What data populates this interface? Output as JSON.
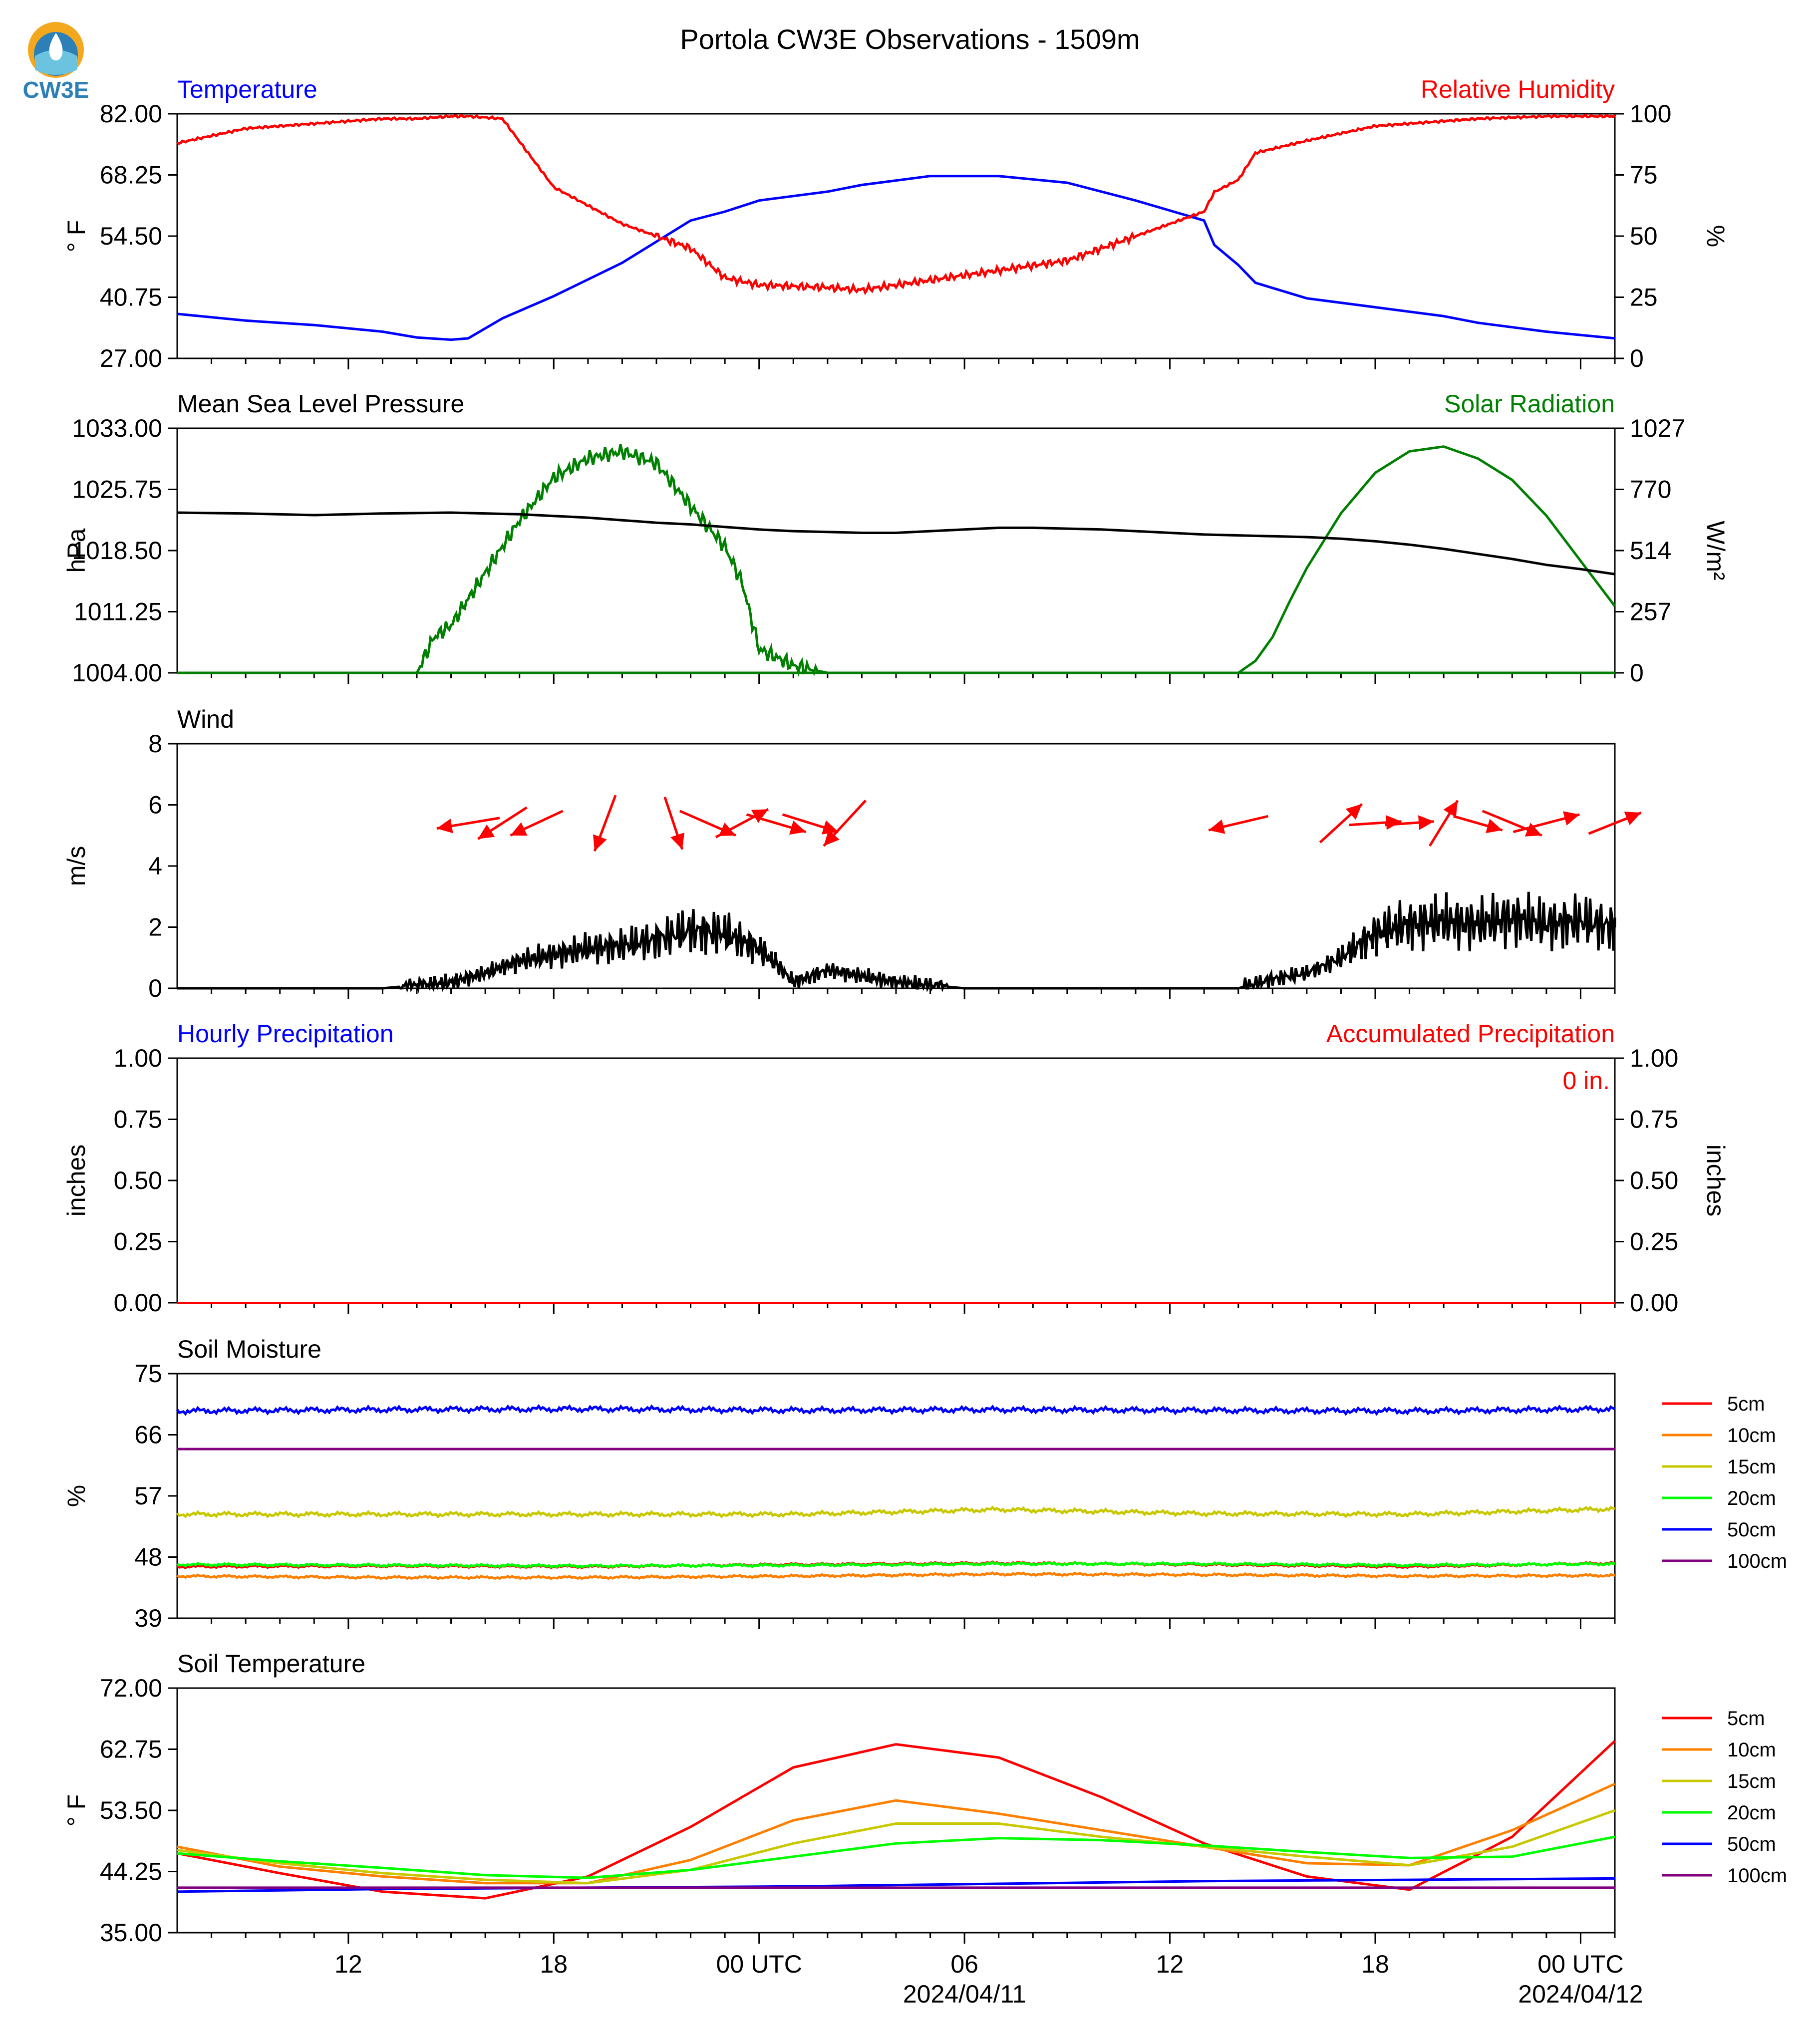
{
  "title": "Portola CW3E Observations - 1509m",
  "logo": {
    "text": "CW3E",
    "colors": [
      "#f4a81d",
      "#2d7fb8",
      "#6cc3e0"
    ]
  },
  "colors": {
    "temp": "#0000ff",
    "rh": "#ff0000",
    "pressure": "#000000",
    "solar": "#008000",
    "wind": "#000000",
    "arrows": "#ff0000",
    "precip_hourly": "#0000ff",
    "precip_accum": "#ff0000"
  },
  "x_axis": {
    "tick_labels": [
      "12",
      "18",
      "00 UTC",
      "06",
      "12",
      "18",
      "00 UTC"
    ],
    "date_labels": [
      "2024/04/11",
      "2024/04/12"
    ]
  },
  "chart_data": [
    {
      "type": "line",
      "title_left": "Temperature",
      "title_right": "Relative Humidity",
      "ylabel_left": "° F",
      "ylabel_right": "%",
      "ylim_left": [
        27,
        82
      ],
      "ylim_right": [
        0,
        100
      ],
      "yticks_left": [
        "27.00",
        "40.75",
        "54.50",
        "68.25",
        "82.00"
      ],
      "yticks_right": [
        "0",
        "25",
        "50",
        "75",
        "100"
      ],
      "x_hours": [
        0,
        2,
        4,
        6,
        7,
        8,
        8.5,
        9.5,
        11,
        13,
        15,
        16,
        17,
        19,
        20,
        22,
        24,
        26,
        28,
        30,
        30.3,
        31,
        31.5,
        33,
        35,
        37,
        38,
        40,
        42
      ],
      "series": [
        {
          "name": "Temperature",
          "axis": "left",
          "values": [
            37,
            35.5,
            34.5,
            33,
            31.7,
            31.2,
            31.5,
            36,
            41,
            48.5,
            58,
            60,
            62.5,
            64.5,
            66,
            68,
            68,
            66.5,
            62.5,
            58,
            52.5,
            48,
            44,
            40.5,
            38.5,
            36.5,
            35,
            33,
            31.5
          ]
        },
        {
          "name": "Relative Humidity",
          "axis": "right",
          "values": [
            88,
            94,
            96,
            98,
            98,
            99,
            99,
            98,
            70,
            55,
            45,
            33,
            30,
            29,
            28,
            32,
            36,
            40,
            50,
            60,
            68,
            73,
            84,
            89,
            95,
            97,
            98,
            99,
            99
          ]
        }
      ]
    },
    {
      "type": "line",
      "title_left": "Mean Sea Level Pressure",
      "title_right": "Solar Radiation",
      "ylabel_left": "hPa",
      "ylabel_right": "W/m²",
      "ylim_left": [
        1004,
        1033
      ],
      "ylim_right": [
        0,
        1027
      ],
      "yticks_left": [
        "1004.00",
        "1011.25",
        "1018.50",
        "1025.75",
        "1033.00"
      ],
      "yticks_right": [
        "0",
        "257",
        "514",
        "770",
        "1027"
      ],
      "x_hours": [
        0,
        2,
        4,
        6,
        8,
        10,
        11,
        12,
        13,
        14,
        15,
        16,
        17,
        18,
        19,
        20,
        21,
        22,
        23,
        24,
        25,
        26,
        27,
        28,
        29,
        30,
        31,
        32,
        33,
        34,
        35,
        36,
        37,
        38,
        39,
        40,
        41,
        42
      ],
      "series": [
        {
          "name": "Mean Sea Level Pressure",
          "axis": "left",
          "values": [
            1023.0,
            1022.9,
            1022.7,
            1022.9,
            1023.0,
            1022.8,
            1022.6,
            1022.4,
            1022.1,
            1021.8,
            1021.6,
            1021.3,
            1021.0,
            1020.8,
            1020.7,
            1020.6,
            1020.6,
            1020.8,
            1021.0,
            1021.2,
            1021.2,
            1021.1,
            1021.0,
            1020.8,
            1020.6,
            1020.4,
            1020.3,
            1020.2,
            1020.1,
            1019.9,
            1019.6,
            1019.2,
            1018.7,
            1018.1,
            1017.5,
            1016.8,
            1016.3,
            1015.7
          ]
        },
        {
          "name": "Solar Radiation",
          "axis": "right",
          "values": [
            0,
            0,
            0,
            0,
            0,
            0,
            0,
            0,
            0,
            0,
            0,
            0,
            0,
            0,
            0,
            0,
            0,
            0,
            0,
            0,
            0,
            0,
            0,
            0,
            0,
            0,
            0,
            0,
            0,
            0,
            0,
            0,
            0,
            0,
            0,
            0,
            0,
            0
          ]
        },
        {
          "name": "Solar Radiation (day 1)",
          "axis": "right",
          "x_hours": [
            7,
            7.5,
            8,
            9,
            10,
            11,
            12,
            13,
            14,
            15,
            16,
            16.5,
            17,
            18,
            19,
            19.3
          ],
          "values": [
            0,
            150,
            200,
            420,
            640,
            820,
            900,
            930,
            880,
            700,
            530,
            380,
            100,
            30,
            0,
            0
          ]
        },
        {
          "name": "Solar Radiation (day 2)",
          "axis": "right",
          "x_hours": [
            31,
            31.5,
            32,
            32.5,
            33,
            34,
            35,
            36,
            37,
            38,
            39,
            40,
            41,
            42
          ],
          "values": [
            0,
            50,
            150,
            300,
            440,
            670,
            840,
            930,
            950,
            900,
            810,
            660,
            470,
            280
          ]
        }
      ]
    },
    {
      "type": "line",
      "title_left": "Wind",
      "ylabel_left": "m/s",
      "ylim_left": [
        0,
        8
      ],
      "yticks_left": [
        "0",
        "2",
        "4",
        "6",
        "8"
      ],
      "x_hours": [
        0,
        6,
        8,
        9,
        10,
        11,
        12,
        13,
        14,
        15,
        16,
        17,
        17.5,
        18,
        18.5,
        19,
        20,
        21,
        22,
        23,
        24,
        25,
        26,
        27,
        28,
        29,
        30,
        31,
        32,
        33,
        34,
        35,
        36,
        37,
        38,
        39,
        40,
        41,
        42
      ],
      "series": [
        {
          "name": "Wind",
          "values": [
            0,
            0,
            0.2,
            0.5,
            0.9,
            1.1,
            1.3,
            1.4,
            1.6,
            1.9,
            1.8,
            1.3,
            0.8,
            0.2,
            0.4,
            0.6,
            0.4,
            0.2,
            0.1,
            0,
            0,
            0,
            0,
            0,
            0,
            0,
            0,
            0,
            0.3,
            0.5,
            1.0,
            1.8,
            2.1,
            2.2,
            2.1,
            2.3,
            2.1,
            2.2,
            2.0
          ]
        }
      ],
      "arrows": {
        "description": "wind direction arrows",
        "x_hours": [
          8.5,
          9.5,
          10.5,
          12.5,
          14.5,
          15.5,
          16.5,
          17.5,
          18.5,
          19.5,
          31,
          34,
          35,
          36,
          37,
          38,
          39,
          40,
          42
        ],
        "u": [
          -1.8,
          -1.4,
          -1.5,
          -0.6,
          0.5,
          1.6,
          1.5,
          1.7,
          1.6,
          -1.2,
          -1.7,
          1.2,
          1.5,
          1.4,
          0.8,
          1.4,
          1.7,
          1.9,
          1.5
        ],
        "v": [
          -0.3,
          -0.9,
          -0.7,
          -1.6,
          -1.5,
          -0.7,
          0.8,
          -0.5,
          -0.5,
          -1.3,
          -0.4,
          1.1,
          0.1,
          0.1,
          1.3,
          -0.4,
          -0.7,
          0.5,
          0.6
        ]
      }
    },
    {
      "type": "line",
      "title_left": "Hourly Precipitation",
      "title_right": "Accumulated Precipitation",
      "ylabel_left": "inches",
      "ylabel_right": "inches",
      "ylim_left": [
        0,
        1
      ],
      "ylim_right": [
        0,
        1
      ],
      "yticks_left": [
        "0.00",
        "0.25",
        "0.50",
        "0.75",
        "1.00"
      ],
      "yticks_right": [
        "0.00",
        "0.25",
        "0.50",
        "0.75",
        "1.00"
      ],
      "annotation": "0 in.",
      "x_hours": [
        0,
        42
      ],
      "series": [
        {
          "name": "Hourly Precipitation",
          "values": [
            0,
            0
          ]
        },
        {
          "name": "Accumulated Precipitation",
          "values": [
            0,
            0
          ]
        }
      ]
    },
    {
      "type": "line",
      "title_left": "Soil Moisture",
      "ylabel_left": "%",
      "ylim_left": [
        39,
        75
      ],
      "yticks_left": [
        "39",
        "48",
        "57",
        "66",
        "75"
      ],
      "x_hours": [
        0,
        6,
        12,
        18,
        24,
        30,
        36,
        42
      ],
      "series": [
        {
          "name": "5cm",
          "color": "#ff0000",
          "values": [
            46.6,
            46.7,
            46.6,
            46.9,
            47.1,
            46.9,
            46.6,
            47.1
          ]
        },
        {
          "name": "10cm",
          "color": "#ff8000",
          "values": [
            45.2,
            45.0,
            45.0,
            45.2,
            45.5,
            45.4,
            45.2,
            45.3
          ]
        },
        {
          "name": "15cm",
          "color": "#c8c800",
          "values": [
            54.3,
            54.3,
            54.3,
            54.3,
            55.0,
            54.4,
            54.3,
            55.1
          ]
        },
        {
          "name": "20cm",
          "color": "#00ff00",
          "values": [
            46.9,
            46.8,
            46.7,
            46.8,
            47.0,
            47.0,
            46.8,
            47.0
          ]
        },
        {
          "name": "50cm",
          "color": "#0000ff",
          "values": [
            69.5,
            69.7,
            69.8,
            69.6,
            69.7,
            69.6,
            69.5,
            69.8
          ]
        },
        {
          "name": "100cm",
          "color": "#800080",
          "values": [
            63.9,
            63.9,
            63.9,
            63.9,
            63.9,
            63.9,
            63.9,
            63.9
          ]
        }
      ]
    },
    {
      "type": "line",
      "title_left": "Soil Temperature",
      "ylabel_left": "° F",
      "ylim_left": [
        35,
        72
      ],
      "yticks_left": [
        "35.00",
        "44.25",
        "53.50",
        "62.75",
        "72.00"
      ],
      "x_hours": [
        0,
        3,
        6,
        9,
        12,
        15,
        18,
        21,
        24,
        27,
        30,
        33,
        36,
        39,
        42
      ],
      "series": [
        {
          "name": "5cm",
          "color": "#ff0000",
          "values": [
            47,
            44,
            41.2,
            40.2,
            43.5,
            51,
            60,
            63.5,
            61.5,
            55.5,
            48.5,
            43.5,
            41.5,
            49.5,
            64
          ]
        },
        {
          "name": "10cm",
          "color": "#ff8000",
          "values": [
            48,
            45,
            43.5,
            42.5,
            42.5,
            46,
            52,
            55,
            53,
            50.5,
            48,
            45.5,
            45.2,
            50.5,
            57.5
          ]
        },
        {
          "name": "15cm",
          "color": "#c8c800",
          "values": [
            47.5,
            45.5,
            44,
            43,
            42.5,
            44.5,
            48.5,
            51.5,
            51.5,
            49.5,
            48,
            46.5,
            45.2,
            48,
            53.5
          ]
        },
        {
          "name": "20cm",
          "color": "#00ff00",
          "values": [
            47,
            45.8,
            44.8,
            43.7,
            43.3,
            44.5,
            46.5,
            48.5,
            49.3,
            49,
            48.2,
            47.2,
            46.3,
            46.5,
            49.5
          ]
        },
        {
          "name": "50cm",
          "color": "#0000ff",
          "values": [
            41.2,
            41.4,
            41.6,
            41.7,
            41.8,
            41.9,
            42.0,
            42.2,
            42.4,
            42.6,
            42.8,
            42.9,
            43.0,
            43.1,
            43.2
          ]
        },
        {
          "name": "100cm",
          "color": "#800080",
          "values": [
            41.8,
            41.8,
            41.8,
            41.8,
            41.8,
            41.8,
            41.8,
            41.8,
            41.8,
            41.8,
            41.8,
            41.8,
            41.8,
            41.8,
            41.8
          ]
        }
      ]
    }
  ]
}
